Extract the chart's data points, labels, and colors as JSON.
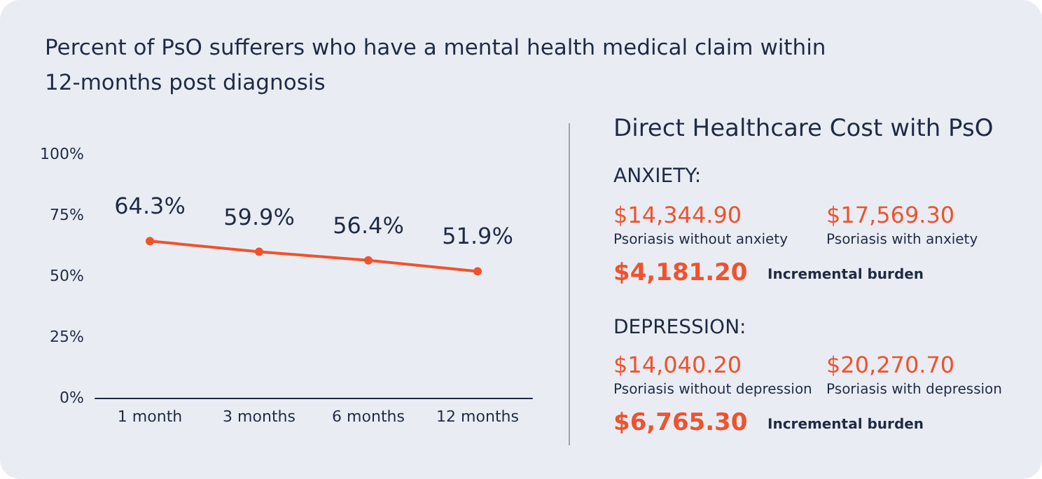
{
  "chart_data": [
    {
      "type": "line",
      "title": "Percent of PsO sufferers who have a mental health medical claim within 12-months post diagnosis",
      "categories": [
        "1 month",
        "3 months",
        "6 months",
        "12 months"
      ],
      "values": [
        64.3,
        59.9,
        56.4,
        51.9
      ],
      "value_labels": [
        "64.3%",
        "59.9%",
        "56.4%",
        "51.9%"
      ],
      "color": "#f0522d",
      "marker": "circle",
      "ylim": [
        0,
        100
      ],
      "yticks": [
        {
          "value": 0,
          "label": "0%"
        },
        {
          "value": 25,
          "label": "25%"
        },
        {
          "value": 50,
          "label": "50%"
        },
        {
          "value": 75,
          "label": "75%"
        },
        {
          "value": 100,
          "label": "100%"
        }
      ],
      "grid": false
    },
    {
      "type": "other",
      "title": "Direct Healthcare Cost with PsO",
      "annotations": [
        "ANXIETY:",
        "$14,344.90",
        "Psoriasis without anxiety",
        "$17,569.30",
        "Psoriasis with anxiety",
        "$4,181.20",
        "Incremental burden",
        "DEPRESSION:",
        "$14,040.20",
        "Psoriasis without depression",
        "$20,270.70",
        "Psoriasis with depression",
        "$6,765.30",
        "Incremental burden"
      ]
    }
  ]
}
